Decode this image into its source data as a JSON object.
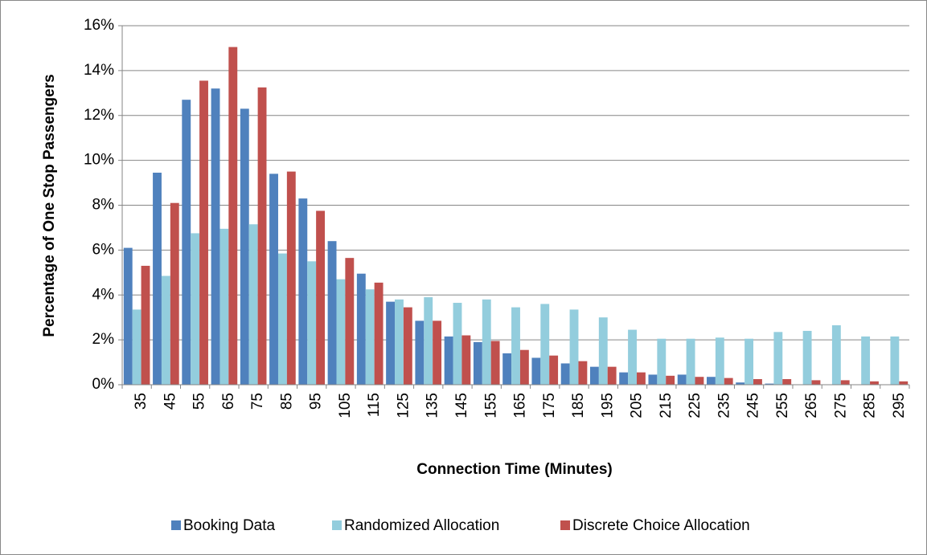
{
  "chart_data": {
    "type": "bar",
    "x_label": "Connection Time (Minutes)",
    "y_label": "Percentage of One Stop Passengers",
    "categories": [
      "35",
      "45",
      "55",
      "65",
      "75",
      "85",
      "95",
      "105",
      "115",
      "125",
      "135",
      "145",
      "155",
      "165",
      "175",
      "185",
      "195",
      "205",
      "215",
      "225",
      "235",
      "245",
      "255",
      "265",
      "275",
      "285",
      "295"
    ],
    "series": [
      {
        "name": "Booking Data",
        "color": "#4f81bd",
        "values": [
          6.1,
          9.45,
          12.7,
          13.2,
          12.3,
          9.4,
          8.3,
          6.4,
          4.95,
          3.7,
          2.85,
          2.15,
          1.9,
          1.4,
          1.2,
          0.95,
          0.8,
          0.55,
          0.45,
          0.45,
          0.35,
          0.1,
          0.05,
          0,
          0,
          0,
          0
        ]
      },
      {
        "name": "Randomized Allocation",
        "color": "#93cddd",
        "values": [
          3.35,
          4.85,
          6.75,
          6.95,
          7.15,
          5.85,
          5.5,
          4.7,
          4.25,
          3.8,
          3.9,
          3.65,
          3.8,
          3.45,
          3.6,
          3.35,
          3.0,
          2.45,
          2.05,
          2.05,
          2.1,
          2.05,
          2.35,
          2.4,
          2.65,
          2.15,
          2.15
        ]
      },
      {
        "name": "Discrete Choice Allocation",
        "color": "#c0504d",
        "values": [
          5.3,
          8.1,
          13.55,
          15.05,
          13.25,
          9.5,
          7.75,
          5.65,
          4.55,
          3.45,
          2.85,
          2.2,
          1.95,
          1.55,
          1.3,
          1.05,
          0.8,
          0.55,
          0.4,
          0.35,
          0.3,
          0.25,
          0.25,
          0.2,
          0.2,
          0.15,
          0.15
        ]
      }
    ],
    "ylim": [
      0,
      16
    ],
    "yticks": [
      {
        "value": 0,
        "label": "0%"
      },
      {
        "value": 2,
        "label": "2%"
      },
      {
        "value": 4,
        "label": "4%"
      },
      {
        "value": 6,
        "label": "6%"
      },
      {
        "value": 8,
        "label": "8%"
      },
      {
        "value": 10,
        "label": "10%"
      },
      {
        "value": 12,
        "label": "12%"
      },
      {
        "value": 14,
        "label": "14%"
      },
      {
        "value": 16,
        "label": "16%"
      }
    ],
    "grid": true,
    "legend": "bottom"
  }
}
